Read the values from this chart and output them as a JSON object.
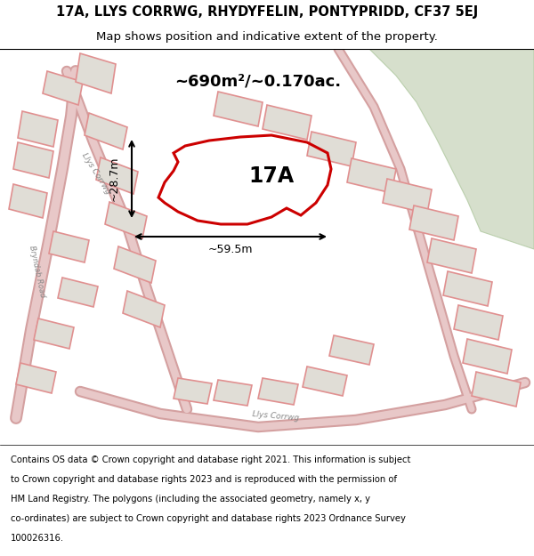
{
  "title_line1": "17A, LLYS CORRWG, RHYDYFELIN, PONTYPRIDD, CF37 5EJ",
  "title_line2": "Map shows position and indicative extent of the property.",
  "area_label": "~690m²/~0.170ac.",
  "property_label": "17A",
  "dim_horizontal": "~59.5m",
  "dim_vertical": "~28.7m",
  "footer_lines": [
    "Contains OS data © Crown copyright and database right 2021. This information is subject",
    "to Crown copyright and database rights 2023 and is reproduced with the permission of",
    "HM Land Registry. The polygons (including the associated geometry, namely x, y",
    "co-ordinates) are subject to Crown copyright and database rights 2023 Ordnance Survey",
    "100026316."
  ],
  "map_bg": "#ede9e1",
  "property_edge": "#cc0000",
  "building_fill": "#e0ddd6",
  "building_edge": "#e09090",
  "road_outer": "#d4a0a0",
  "road_inner": "#e8c8c8",
  "green_fill": "#ccd8c0",
  "green_edge": "#b0c8a0",
  "label_color": "#888888"
}
